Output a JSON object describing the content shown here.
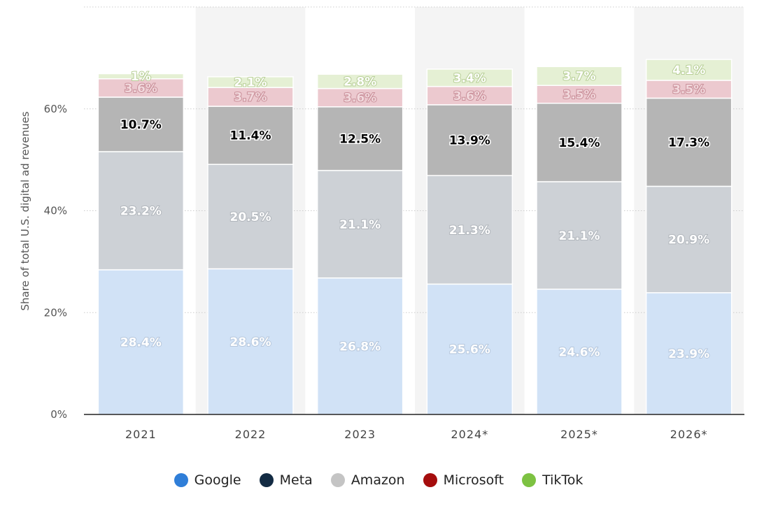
{
  "chart_data": {
    "type": "bar",
    "stacked": true,
    "categories": [
      "2021",
      "2022",
      "2023",
      "2024*",
      "2025*",
      "2026*"
    ],
    "series": [
      {
        "name": "Google",
        "values": [
          28.4,
          28.6,
          26.8,
          25.6,
          24.6,
          23.9
        ],
        "labels": [
          "28.4%",
          "28.6%",
          "26.8%",
          "25.6%",
          "24.6%",
          "23.9%"
        ]
      },
      {
        "name": "Amazon",
        "values": [
          23.2,
          20.5,
          21.1,
          21.3,
          21.1,
          20.9
        ],
        "labels": [
          "23.2%",
          "20.5%",
          "21.1%",
          "21.3%",
          "21.1%",
          "20.9%"
        ]
      },
      {
        "name": "Meta",
        "values": [
          10.7,
          11.4,
          12.5,
          13.9,
          15.4,
          17.3
        ],
        "labels": [
          "10.7%",
          "11.4%",
          "12.5%",
          "13.9%",
          "15.4%",
          "17.3%"
        ]
      },
      {
        "name": "Microsoft",
        "values": [
          3.6,
          3.7,
          3.6,
          3.6,
          3.5,
          3.5
        ],
        "labels": [
          "3.6%",
          "3.7%",
          "3.6%",
          "3.6%",
          "3.5%",
          "3.5%"
        ]
      },
      {
        "name": "TikTok",
        "values": [
          1,
          2.1,
          2.8,
          3.4,
          3.7,
          4.1
        ],
        "labels": [
          "1%",
          "2.1%",
          "2.8%",
          "3.4%",
          "3.7%",
          "4.1%"
        ]
      }
    ],
    "title": "",
    "xlabel": "",
    "ylabel": "Share of total U.S. digital ad revenues",
    "ylim": [
      0,
      80
    ],
    "yticks": [
      0,
      20,
      40,
      60
    ],
    "ytick_labels": [
      "0%",
      "20%",
      "40%",
      "60%"
    ],
    "grid": true,
    "legend_position": "bottom-center"
  },
  "legend": {
    "items": [
      {
        "name": "Google",
        "color": "#2f7ed8"
      },
      {
        "name": "Meta",
        "color": "#132b43"
      },
      {
        "name": "Amazon",
        "color": "#c4c4c4"
      },
      {
        "name": "Microsoft",
        "color": "#a50d0d"
      },
      {
        "name": "TikTok",
        "color": "#7dc242"
      }
    ]
  },
  "colors": {
    "Google": "#d1e2f6",
    "Amazon": "#cdd1d6",
    "Meta": "#b5b5b5",
    "Microsoft": "#ecc9cf",
    "TikTok": "#e5f0d4",
    "band": "#f4f4f4",
    "grid": "#cccccc",
    "axis": "#222222"
  }
}
